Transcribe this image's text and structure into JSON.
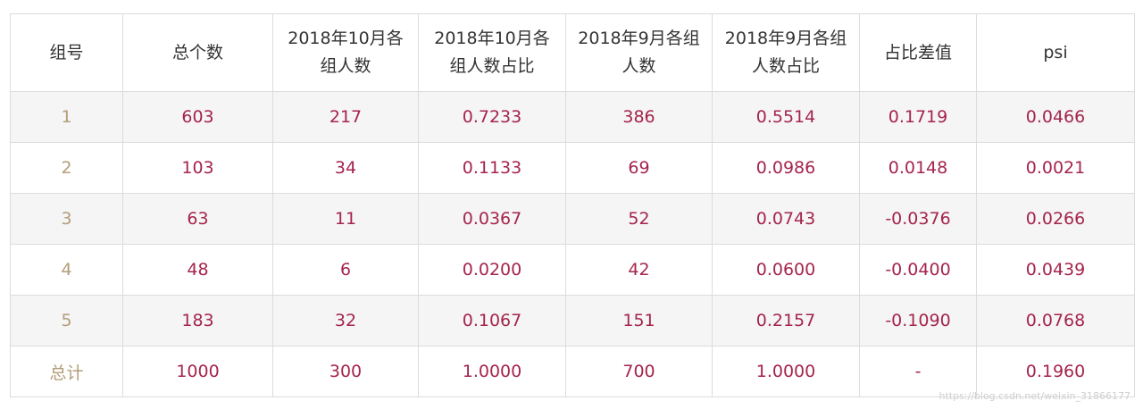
{
  "table": {
    "headers": [
      "组号",
      "总个数",
      "2018年10月各组人数",
      "2018年10月各组人数占比",
      "2018年9月各组人数",
      "2018年9月各组人数占比",
      "占比差值",
      "psi"
    ],
    "rows": [
      [
        "1",
        "603",
        "217",
        "0.7233",
        "386",
        "0.5514",
        "0.1719",
        "0.0466"
      ],
      [
        "2",
        "103",
        "34",
        "0.1133",
        "69",
        "0.0986",
        "0.0148",
        "0.0021"
      ],
      [
        "3",
        "63",
        "11",
        "0.0367",
        "52",
        "0.0743",
        "-0.0376",
        "0.0266"
      ],
      [
        "4",
        "48",
        "6",
        "0.0200",
        "42",
        "0.0600",
        "-0.0400",
        "0.0439"
      ],
      [
        "5",
        "183",
        "32",
        "0.1067",
        "151",
        "0.2157",
        "-0.1090",
        "0.0768"
      ],
      [
        "总计",
        "1000",
        "300",
        "1.0000",
        "700",
        "1.0000",
        "-",
        "0.1960"
      ]
    ]
  },
  "watermark": "https://blog.csdn.net/weixin_31866177",
  "colors": {
    "cell_text": "#a5254d",
    "group_text": "#b29d78",
    "header_text": "#333333",
    "stripe": "#f5f5f5",
    "border": "#dcdcdc"
  }
}
